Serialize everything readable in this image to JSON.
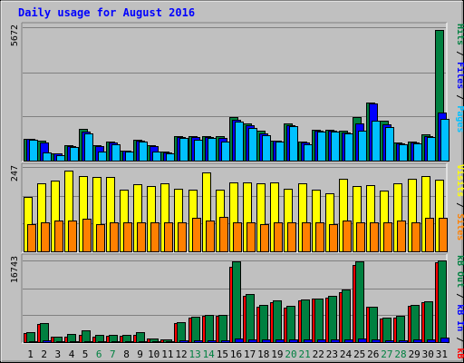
{
  "title": "Daily usage for August 2016",
  "colors": {
    "title": "#0000ff",
    "page_bg": "#c0c0c0",
    "plot_bg": "#c0c0c0",
    "grid": "#808080",
    "pages": "#00c0ff",
    "files": "#0000ff",
    "hits": "#008040",
    "visits": "#ffff00",
    "sites": "#ff8000",
    "kb_in": "#008040",
    "kb_out": "#0000ff",
    "kb_f": "#ff0000",
    "day_normal": "#000000",
    "day_weekend": "#008040"
  },
  "chart_data": [
    {
      "type": "bar",
      "panel": "pages-files-hits",
      "ymax_label": "5672",
      "ymax": 5672,
      "legend": [
        {
          "text": "Pages",
          "color": "#00c0ff"
        },
        {
          "text": "Files",
          "color": "#0000ff"
        },
        {
          "text": "Hits",
          "color": "#008040"
        }
      ],
      "legend_separator": " / ",
      "categories": [
        "1",
        "2",
        "3",
        "4",
        "5",
        "6",
        "7",
        "8",
        "9",
        "10",
        "11",
        "12",
        "13",
        "14",
        "15",
        "16",
        "17",
        "18",
        "19",
        "20",
        "21",
        "22",
        "23",
        "24",
        "25",
        "26",
        "27",
        "28",
        "29",
        "30",
        "31"
      ],
      "series": [
        {
          "name": "Hits",
          "values": [
            935,
            840,
            310,
            675,
            1360,
            640,
            800,
            430,
            875,
            650,
            370,
            1050,
            1040,
            1060,
            1030,
            1840,
            1570,
            1260,
            860,
            1580,
            800,
            1320,
            1330,
            1270,
            1840,
            2460,
            1700,
            760,
            810,
            1100,
            5560
          ]
        },
        {
          "name": "Files",
          "values": [
            935,
            770,
            300,
            600,
            1240,
            620,
            765,
            410,
            830,
            615,
            350,
            1000,
            1000,
            1010,
            960,
            1720,
            1500,
            1160,
            840,
            1510,
            760,
            1270,
            1290,
            1180,
            1580,
            2430,
            1540,
            735,
            775,
            1050,
            2040
          ]
        },
        {
          "name": "Pages",
          "values": [
            880,
            365,
            250,
            580,
            1175,
            400,
            705,
            380,
            800,
            400,
            290,
            960,
            900,
            960,
            820,
            1640,
            1390,
            1070,
            810,
            1460,
            710,
            1220,
            1250,
            1140,
            1270,
            1700,
            1430,
            700,
            745,
            1020,
            1760
          ]
        }
      ]
    },
    {
      "type": "bar",
      "panel": "visits-sites",
      "ymax_label": "247",
      "ymax": 247,
      "legend": [
        {
          "text": "Sites",
          "color": "#ff8000"
        },
        {
          "text": "Visits",
          "color": "#ffff00"
        }
      ],
      "legend_separator": " / ",
      "categories": [
        "1",
        "2",
        "3",
        "4",
        "5",
        "6",
        "7",
        "8",
        "9",
        "10",
        "11",
        "12",
        "13",
        "14",
        "15",
        "16",
        "17",
        "18",
        "19",
        "20",
        "21",
        "22",
        "23",
        "24",
        "25",
        "26",
        "27",
        "28",
        "29",
        "30",
        "31"
      ],
      "series": [
        {
          "name": "Visits",
          "values": [
            160,
            200,
            206,
            236,
            220,
            217,
            218,
            180,
            197,
            192,
            200,
            182,
            180,
            230,
            180,
            202,
            202,
            198,
            201,
            184,
            199,
            180,
            171,
            212,
            192,
            195,
            178,
            200,
            212,
            220,
            210
          ]
        },
        {
          "name": "Sites",
          "values": [
            80,
            86,
            91,
            91,
            96,
            80,
            86,
            85,
            86,
            86,
            86,
            86,
            97,
            91,
            100,
            86,
            86,
            80,
            86,
            86,
            86,
            86,
            80,
            91,
            86,
            86,
            86,
            91,
            86,
            97,
            97
          ]
        }
      ]
    },
    {
      "type": "bar",
      "panel": "kbf-kbin-kbout",
      "ymax_label": "16743",
      "ymax": 16743,
      "legend": [
        {
          "text": "kB F",
          "color": "#ff0000"
        },
        {
          "text": "kB In",
          "color": "#0000ff"
        },
        {
          "text": "kB Out",
          "color": "#008040"
        }
      ],
      "legend_separator": " / ",
      "categories": [
        "1",
        "2",
        "3",
        "4",
        "5",
        "6",
        "7",
        "8",
        "9",
        "10",
        "11",
        "12",
        "13",
        "14",
        "15",
        "16",
        "17",
        "18",
        "19",
        "20",
        "21",
        "22",
        "23",
        "24",
        "25",
        "26",
        "27",
        "28",
        "29",
        "30",
        "31"
      ],
      "series": [
        {
          "name": "kB F",
          "values": [
            1900,
            3700,
            1050,
            1100,
            1500,
            1050,
            1350,
            1300,
            1550,
            780,
            510,
            3850,
            5100,
            5400,
            5400,
            15500,
            9500,
            7200,
            8200,
            7000,
            8500,
            8900,
            9200,
            10300,
            15800,
            7200,
            4900,
            5100,
            7500,
            8100,
            16300
          ]
        },
        {
          "name": "kB Out",
          "values": [
            2000,
            3900,
            1100,
            1600,
            2450,
            1500,
            1450,
            1450,
            2050,
            820,
            545,
            4100,
            5300,
            5550,
            5600,
            16500,
            9900,
            7550,
            8600,
            7500,
            8700,
            9000,
            9400,
            10700,
            16500,
            7300,
            5100,
            5400,
            7700,
            8300,
            16743
          ]
        },
        {
          "name": "kB In",
          "values": [
            200,
            300,
            120,
            150,
            200,
            150,
            160,
            140,
            190,
            90,
            60,
            300,
            380,
            400,
            400,
            800,
            600,
            500,
            550,
            500,
            560,
            570,
            600,
            650,
            800,
            500,
            380,
            400,
            520,
            550,
            900
          ]
        }
      ]
    }
  ],
  "x_axis": {
    "labels": [
      "1",
      "2",
      "3",
      "4",
      "5",
      "6",
      "7",
      "8",
      "9",
      "10",
      "11",
      "12",
      "13",
      "14",
      "15",
      "16",
      "17",
      "18",
      "19",
      "20",
      "21",
      "22",
      "23",
      "24",
      "25",
      "26",
      "27",
      "28",
      "29",
      "30",
      "31"
    ],
    "weekend": [
      6,
      7,
      13,
      14,
      20,
      21,
      27,
      28
    ]
  }
}
